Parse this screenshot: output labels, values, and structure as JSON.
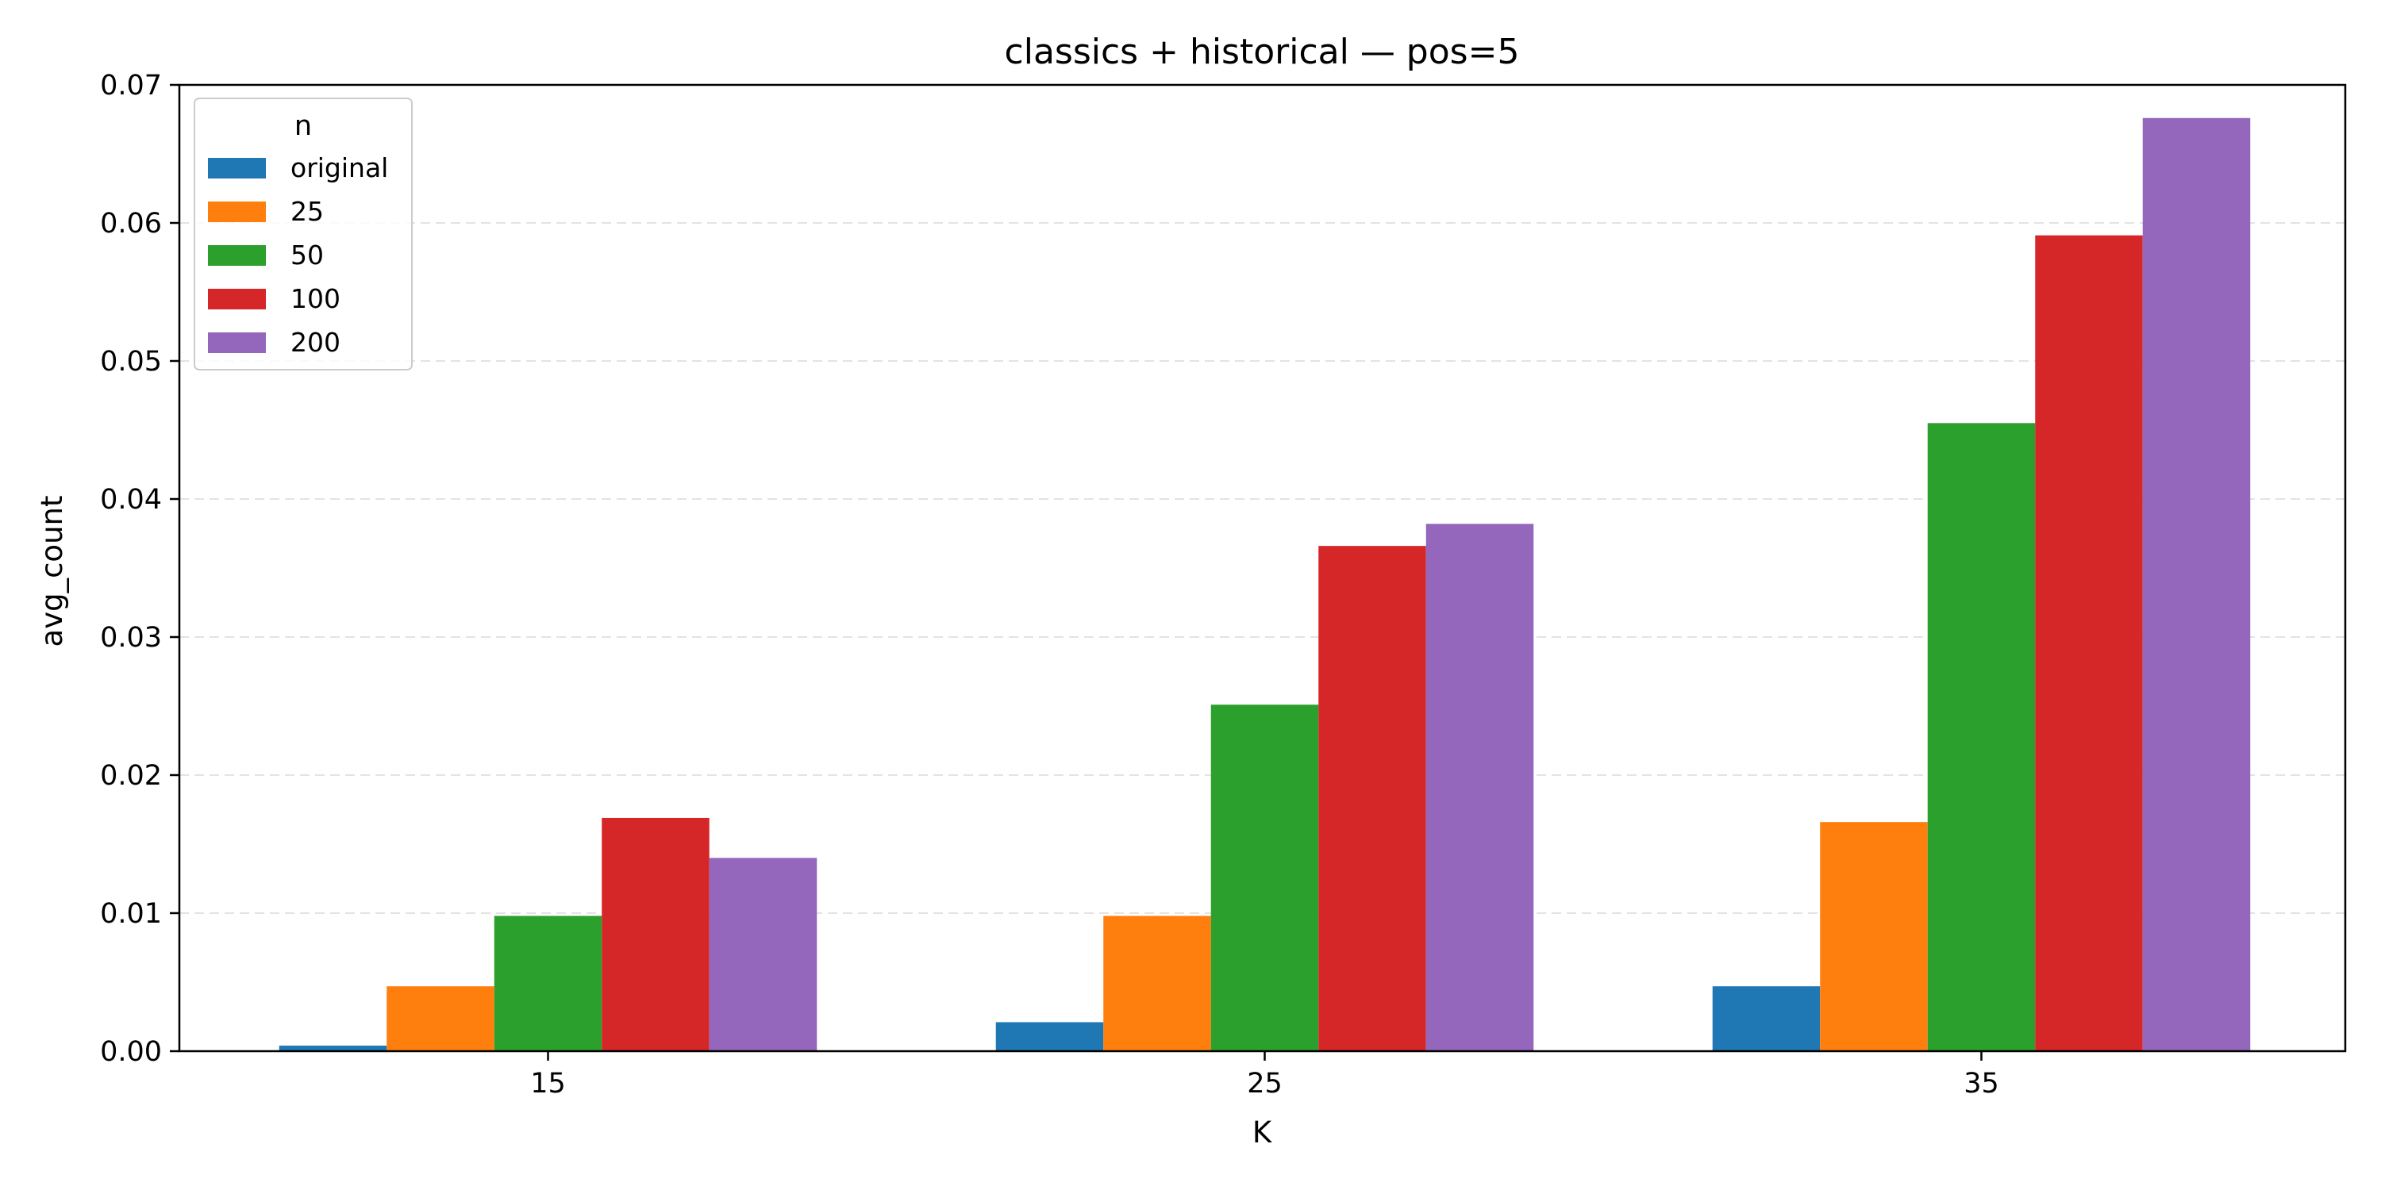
{
  "chart_data": {
    "type": "bar",
    "title": "classics + historical — pos=5",
    "xlabel": "K",
    "ylabel": "avg_count",
    "categories": [
      "15",
      "25",
      "35"
    ],
    "ylim": [
      0,
      0.07
    ],
    "yticks": [
      0.0,
      0.01,
      0.02,
      0.03,
      0.04,
      0.05,
      0.06,
      0.07
    ],
    "ytick_labels": [
      "0.00",
      "0.01",
      "0.02",
      "0.03",
      "0.04",
      "0.05",
      "0.06",
      "0.07"
    ],
    "grid": "y, dashed",
    "legend": {
      "title": "n",
      "placement": "top-left"
    },
    "series": [
      {
        "name": "original",
        "color": "#1f77b4",
        "values": [
          0.0004,
          0.0021,
          0.0047
        ]
      },
      {
        "name": "25",
        "color": "#ff7f0e",
        "values": [
          0.0047,
          0.0098,
          0.0166
        ]
      },
      {
        "name": "50",
        "color": "#2ca02c",
        "values": [
          0.0098,
          0.0251,
          0.0455
        ]
      },
      {
        "name": "100",
        "color": "#d62728",
        "values": [
          0.0169,
          0.0366,
          0.0591
        ]
      },
      {
        "name": "200",
        "color": "#9467bd",
        "values": [
          0.014,
          0.0382,
          0.0676
        ]
      }
    ]
  }
}
